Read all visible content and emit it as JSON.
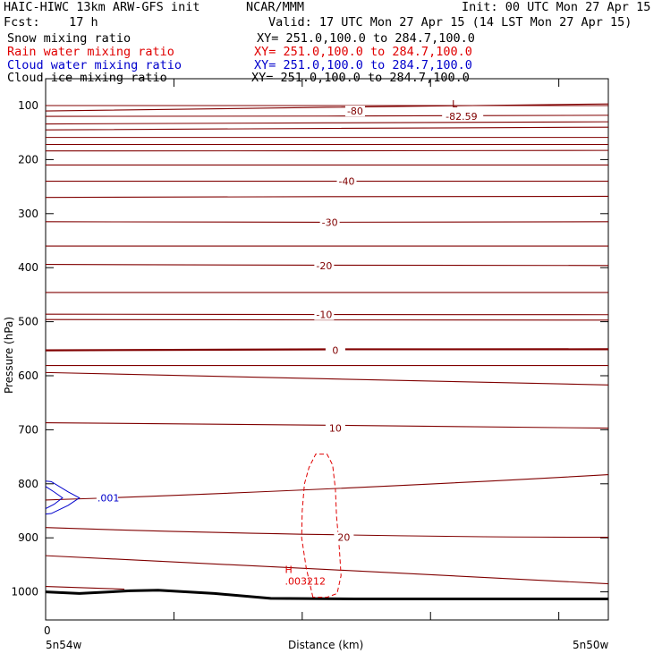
{
  "header": {
    "title": "HAIC-HIWC 13km ARW-GFS init",
    "source": "NCAR/MMM",
    "init": "Init: 00 UTC Mon 27 Apr 15",
    "fcst": "Fcst:    17 h",
    "valid": "Valid: 17 UTC Mon 27 Apr 15 (14 LST Mon 27 Apr 15)"
  },
  "fields": [
    {
      "name": "Snow mixing ratio",
      "xy": "XY= 251.0,100.0 to 284.7,100.0",
      "color": "#000000"
    },
    {
      "name": "Rain water mixing ratio",
      "xy": "XY= 251.0,100.0 to 284.7,100.0",
      "color": "#e00000"
    },
    {
      "name": "Cloud water mixing ratio",
      "xy": "XY= 251.0,100.0 to 284.7,100.0",
      "color": "#0000cc"
    },
    {
      "name": "Cloud ice mixing ratio",
      "xy": "XY= 251.0,100.0 to 284.7,100.0",
      "color": "#000000"
    }
  ],
  "chart_data": {
    "type": "contour cross-section",
    "ylabel": "Pressure (hPa)",
    "xlabel": "Distance (km)",
    "yticks": [
      100,
      200,
      300,
      400,
      500,
      600,
      700,
      800,
      900,
      1000
    ],
    "ylim": [
      1050,
      90
    ],
    "xlim": [
      0,
      1
    ],
    "x_tick_label": "0",
    "x_left_label": "5n54w",
    "x_right_label": "5n50w",
    "temperature_labels": [
      {
        "text": "-80",
        "x": 0.55,
        "p": 110
      },
      {
        "text": "-40",
        "x": 0.535,
        "p": 240
      },
      {
        "text": "-30",
        "x": 0.505,
        "p": 316
      },
      {
        "text": "-20",
        "x": 0.495,
        "p": 396
      },
      {
        "text": "-10",
        "x": 0.495,
        "p": 487
      },
      {
        "text": "0",
        "x": 0.515,
        "p": 553
      },
      {
        "text": "10",
        "x": 0.515,
        "p": 697
      },
      {
        "text": "20",
        "x": 0.53,
        "p": 899
      }
    ],
    "low_label": {
      "marker": "L",
      "value": "-82.59",
      "x": 0.73,
      "p": 100
    },
    "high_label": {
      "marker": "H",
      "value": ".003212",
      "x": 0.43,
      "p": 985
    },
    "cloud_water_label": {
      "text": ".001",
      "x": 0.1,
      "p": 826
    },
    "colors": {
      "temperature": "#800000",
      "rain": "#e00000",
      "cloud_water": "#0000cc",
      "terrain": "#000000"
    }
  }
}
